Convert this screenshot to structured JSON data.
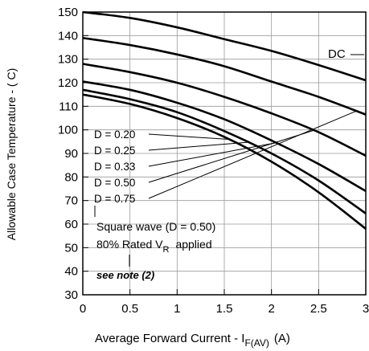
{
  "chart_data": {
    "type": "line",
    "xlabel_main": "Average Forward Current - I",
    "xlabel_sub": "F(AV)",
    "xlabel_unit": "(A)",
    "ylabel": "Allowable Case Temperature - ( C)",
    "xlim": [
      0,
      3
    ],
    "ylim": [
      30,
      150
    ],
    "x_ticks": [
      0,
      0.5,
      1,
      1.5,
      2,
      2.5,
      3
    ],
    "x_tick_labels": [
      "0",
      "0.5",
      "1",
      "1.5",
      "2",
      "2.5",
      "3"
    ],
    "y_ticks": [
      30,
      40,
      50,
      60,
      70,
      80,
      90,
      100,
      110,
      120,
      130,
      140,
      150
    ],
    "y_tick_labels": [
      "30",
      "40",
      "50",
      "60",
      "70",
      "80",
      "90",
      "100",
      "110",
      "120",
      "130",
      "140",
      "150"
    ],
    "grid": true,
    "series": [
      {
        "name": "DC",
        "x": [
          0,
          0.5,
          1,
          1.5,
          2,
          2.5,
          3
        ],
        "y": [
          150,
          147.5,
          143.5,
          138.5,
          133.5,
          127.5,
          121
        ]
      },
      {
        "name": "D = 0.75",
        "x": [
          0,
          0.5,
          1,
          1.5,
          2,
          2.5,
          3
        ],
        "y": [
          139,
          136,
          132,
          127,
          120.5,
          114,
          106.5
        ]
      },
      {
        "name": "D = 0.50",
        "x": [
          0,
          0.5,
          1,
          1.5,
          2,
          2.5,
          3
        ],
        "y": [
          128,
          124.5,
          120,
          114,
          107,
          99,
          89
        ]
      },
      {
        "name": "D = 0.33",
        "x": [
          0,
          0.5,
          1,
          1.5,
          2,
          2.5,
          3
        ],
        "y": [
          120.5,
          117,
          111.5,
          104.5,
          95.5,
          85.5,
          74
        ]
      },
      {
        "name": "D = 0.25",
        "x": [
          0,
          0.5,
          1,
          1.5,
          2,
          2.5,
          3
        ],
        "y": [
          117,
          113,
          107.5,
          99.5,
          90,
          78.5,
          64.5
        ]
      },
      {
        "name": "D = 0.20",
        "x": [
          0,
          0.5,
          1,
          1.5,
          2,
          2.5,
          3
        ],
        "y": [
          115,
          111,
          105,
          97,
          86.5,
          73.5,
          58
        ]
      }
    ],
    "legend_labels": [
      "D = 0.20",
      "D = 0.25",
      "D = 0.33",
      "D = 0.50",
      "D = 0.75"
    ],
    "dc_label": "DC",
    "annotations": {
      "square_wave": "Square wave (D = 0.50)",
      "rated_prefix": "80% Rated V",
      "rated_sub": "R",
      "rated_suffix": "applied",
      "note": "see note (2)"
    }
  }
}
